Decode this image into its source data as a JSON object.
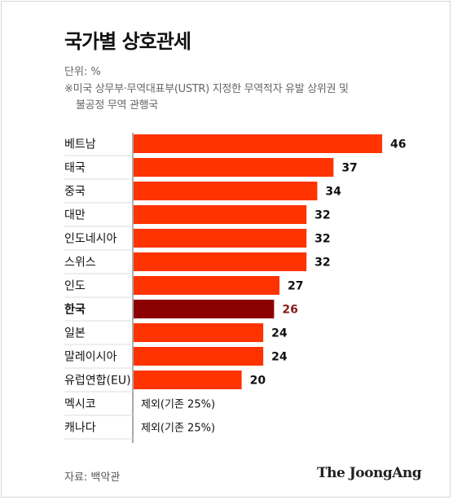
{
  "header": {
    "title": "국가별 상호관세",
    "unit": "단위: %",
    "note_line1": "※미국 상무부·무역대표부(USTR) 지정한 무역적자 유발 상위권 및",
    "note_line2": "불공정 무역 관행국"
  },
  "footer": {
    "source": "자료: 백악관",
    "logo": "The JoongAng"
  },
  "colors": {
    "bar": "#ff3300",
    "highlight_bar": "#8b0000",
    "highlight_label": "#8b1a1a",
    "axis": "#555555"
  },
  "chart_data": {
    "type": "bar",
    "orientation": "horizontal",
    "categories": [
      "베트남",
      "태국",
      "중국",
      "대만",
      "인도네시아",
      "스위스",
      "인도",
      "한국",
      "일본",
      "말레이시아",
      "유럽연합(EU)",
      "멕시코",
      "캐나다"
    ],
    "values": [
      46,
      37,
      34,
      32,
      32,
      32,
      27,
      26,
      24,
      24,
      20,
      null,
      null
    ],
    "value_labels": [
      "46",
      "37",
      "34",
      "32",
      "32",
      "32",
      "27",
      "26",
      "24",
      "24",
      "20",
      "제외(기존 25%)",
      "제외(기존 25%)"
    ],
    "highlight": "한국",
    "xlim": [
      0,
      46
    ]
  }
}
